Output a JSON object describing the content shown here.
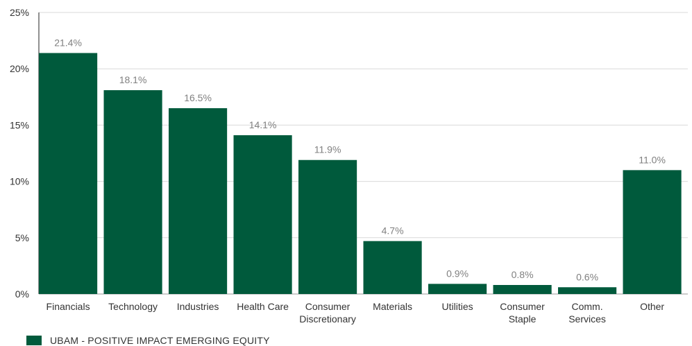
{
  "chart_data": {
    "type": "bar",
    "categories": [
      [
        "Financials"
      ],
      [
        "Technology"
      ],
      [
        "Industries"
      ],
      [
        "Health Care"
      ],
      [
        "Consumer",
        "Discretionary"
      ],
      [
        "Materials"
      ],
      [
        "Utilities"
      ],
      [
        "Consumer",
        "Staple"
      ],
      [
        "Comm.",
        "Services"
      ],
      [
        "Other"
      ]
    ],
    "series": [
      {
        "name": "UBAM - POSITIVE IMPACT EMERGING EQUITY",
        "values": [
          21.4,
          18.1,
          16.5,
          14.1,
          11.9,
          4.7,
          0.9,
          0.8,
          0.6,
          11.0
        ],
        "data_labels": [
          "21.4%",
          "18.1%",
          "16.5%",
          "14.1%",
          "11.9%",
          "4.7%",
          "0.9%",
          "0.8%",
          "0.6%",
          "11.0%"
        ],
        "color": "#005a3c"
      }
    ],
    "yticks": [
      0,
      5,
      10,
      15,
      20,
      25
    ],
    "ytick_labels": [
      "0%",
      "5%",
      "10%",
      "15%",
      "20%",
      "25%"
    ],
    "ylim": [
      0,
      25
    ],
    "grid": true,
    "legend_position": "bottom-left",
    "title": "",
    "xlabel": "",
    "ylabel": ""
  },
  "legend": {
    "label": "UBAM - POSITIVE IMPACT EMERGING EQUITY",
    "color": "#005a3c"
  }
}
